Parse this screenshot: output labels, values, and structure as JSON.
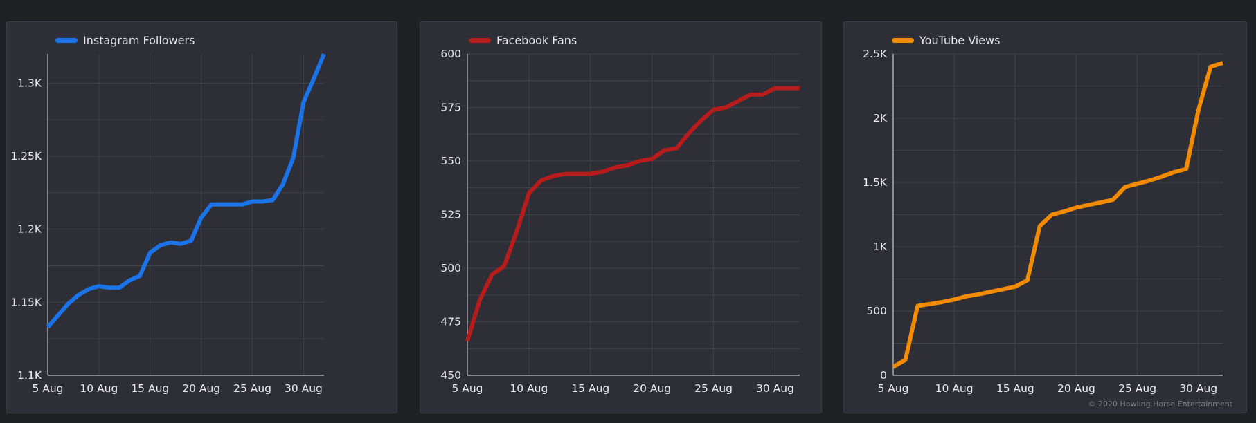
{
  "charts": [
    {
      "legend_label": "Instagram Followers",
      "color": "#1a73e8"
    },
    {
      "legend_label": "Facebook Fans",
      "color": "#b71c1c"
    },
    {
      "legend_label": "YouTube Views",
      "color": "#f28b00"
    }
  ],
  "footer": {
    "copyright": "© 2020 Howling Horse Entertainment"
  },
  "chart_data": [
    {
      "type": "line",
      "title": "",
      "xlabel": "",
      "ylabel": "",
      "color": "#1a73e8",
      "grid": true,
      "legend_placement": "top-left",
      "x_ticks": [
        "5 Aug",
        "10 Aug",
        "15 Aug",
        "20 Aug",
        "25 Aug",
        "30 Aug"
      ],
      "y_ticks": [
        "1.1K",
        "1.15K",
        "1.2K",
        "1.25K",
        "1.3K"
      ],
      "y_tick_values": [
        1100,
        1150,
        1200,
        1250,
        1300
      ],
      "ylim": [
        1100,
        1320
      ],
      "x_days": [
        5,
        32
      ],
      "series": [
        {
          "name": "Instagram Followers",
          "x": [
            "5 Aug",
            "6 Aug",
            "7 Aug",
            "8 Aug",
            "9 Aug",
            "10 Aug",
            "11 Aug",
            "12 Aug",
            "13 Aug",
            "14 Aug",
            "15 Aug",
            "16 Aug",
            "17 Aug",
            "18 Aug",
            "19 Aug",
            "20 Aug",
            "21 Aug",
            "22 Aug",
            "23 Aug",
            "24 Aug",
            "25 Aug",
            "26 Aug",
            "27 Aug",
            "28 Aug",
            "29 Aug",
            "30 Aug",
            "31 Aug",
            "1 Sep"
          ],
          "values": [
            1133,
            1141,
            1149,
            1155,
            1159,
            1161,
            1160,
            1160,
            1165,
            1168,
            1184,
            1189,
            1191,
            1190,
            1192,
            1208,
            1217,
            1217,
            1217,
            1217,
            1219,
            1219,
            1220,
            1231,
            1249,
            1287,
            1303,
            1320
          ]
        }
      ]
    },
    {
      "type": "line",
      "title": "",
      "xlabel": "",
      "ylabel": "",
      "color": "#b71c1c",
      "grid": true,
      "legend_placement": "top-left",
      "x_ticks": [
        "5 Aug",
        "10 Aug",
        "15 Aug",
        "20 Aug",
        "25 Aug",
        "30 Aug"
      ],
      "y_ticks": [
        "450",
        "475",
        "500",
        "525",
        "550",
        "575",
        "600"
      ],
      "y_tick_values": [
        450,
        475,
        500,
        525,
        550,
        575,
        600
      ],
      "ylim": [
        450,
        600
      ],
      "x_days": [
        5,
        32
      ],
      "series": [
        {
          "name": "Facebook Fans",
          "x": [
            "5 Aug",
            "6 Aug",
            "7 Aug",
            "8 Aug",
            "9 Aug",
            "10 Aug",
            "11 Aug",
            "12 Aug",
            "13 Aug",
            "14 Aug",
            "15 Aug",
            "16 Aug",
            "17 Aug",
            "18 Aug",
            "19 Aug",
            "20 Aug",
            "21 Aug",
            "22 Aug",
            "23 Aug",
            "24 Aug",
            "25 Aug",
            "26 Aug",
            "27 Aug",
            "28 Aug",
            "29 Aug",
            "30 Aug",
            "31 Aug",
            "1 Sep"
          ],
          "values": [
            466,
            485,
            497,
            501,
            517,
            535,
            541,
            543,
            544,
            544,
            544,
            545,
            547,
            548,
            550,
            551,
            555,
            556,
            563,
            569,
            574,
            575,
            578,
            581,
            581,
            584,
            584,
            584
          ]
        }
      ]
    },
    {
      "type": "line",
      "title": "",
      "xlabel": "",
      "ylabel": "",
      "color": "#f28b00",
      "grid": true,
      "legend_placement": "top-left",
      "x_ticks": [
        "5 Aug",
        "10 Aug",
        "15 Aug",
        "20 Aug",
        "25 Aug",
        "30 Aug"
      ],
      "y_ticks": [
        "0",
        "500",
        "1K",
        "1.5K",
        "2K",
        "2.5K"
      ],
      "y_tick_values": [
        0,
        500,
        1000,
        1500,
        2000,
        2500
      ],
      "ylim": [
        0,
        2500
      ],
      "x_days": [
        5,
        32
      ],
      "series": [
        {
          "name": "YouTube Views",
          "x": [
            "5 Aug",
            "6 Aug",
            "7 Aug",
            "8 Aug",
            "9 Aug",
            "10 Aug",
            "11 Aug",
            "12 Aug",
            "13 Aug",
            "14 Aug",
            "15 Aug",
            "16 Aug",
            "17 Aug",
            "18 Aug",
            "19 Aug",
            "20 Aug",
            "21 Aug",
            "22 Aug",
            "23 Aug",
            "24 Aug",
            "25 Aug",
            "26 Aug",
            "27 Aug",
            "28 Aug",
            "29 Aug",
            "30 Aug",
            "31 Aug",
            "1 Sep"
          ],
          "values": [
            65,
            120,
            540,
            555,
            570,
            590,
            615,
            630,
            650,
            670,
            690,
            740,
            1160,
            1250,
            1275,
            1305,
            1325,
            1345,
            1365,
            1465,
            1490,
            1515,
            1545,
            1580,
            1605,
            2060,
            2400,
            2430
          ]
        }
      ]
    }
  ]
}
